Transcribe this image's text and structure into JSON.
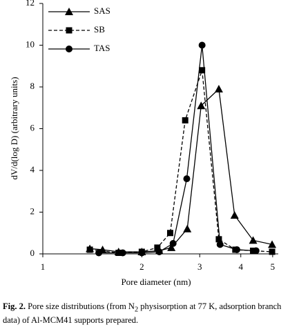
{
  "chart_data": {
    "type": "line",
    "x_label": "Pore diameter (nm)",
    "y_label": "dV/d(log D) (arbitrary units)",
    "xlim": [
      1,
      5.2
    ],
    "xticks": [
      1,
      2,
      3,
      4,
      5
    ],
    "x_log": true,
    "ylim": [
      0,
      12
    ],
    "yticks": [
      0,
      2,
      4,
      6,
      8,
      10,
      12
    ],
    "legend": "upper left",
    "series": [
      {
        "name": "SAS",
        "color": "#000000",
        "marker": "triangle",
        "dashed": false,
        "x": [
          1.39,
          1.52,
          1.7,
          2.0,
          2.26,
          2.46,
          2.75,
          3.03,
          3.43,
          3.83,
          4.36,
          4.98
        ],
        "values": [
          0.25,
          0.2,
          0.1,
          0.1,
          0.15,
          0.3,
          1.2,
          7.1,
          7.9,
          1.85,
          0.65,
          0.45
        ]
      },
      {
        "name": "SB",
        "color": "#000000",
        "marker": "square",
        "dashed": true,
        "x": [
          1.39,
          1.7,
          2.0,
          2.23,
          2.44,
          2.71,
          3.05,
          3.43,
          3.85,
          4.36,
          4.98
        ],
        "values": [
          0.2,
          0.05,
          0.1,
          0.3,
          1.0,
          6.4,
          8.8,
          0.7,
          0.2,
          0.15,
          0.1
        ]
      },
      {
        "name": "TAS",
        "color": "#000000",
        "marker": "circle",
        "dashed": false,
        "x": [
          1.48,
          1.75,
          2.0,
          2.26,
          2.49,
          2.74,
          3.05,
          3.46,
          3.89,
          4.45
        ],
        "values": [
          0.05,
          0.05,
          0.05,
          0.1,
          0.5,
          3.6,
          10.0,
          0.45,
          0.2,
          0.15
        ]
      }
    ]
  },
  "caption": {
    "label": "Fig. 2.",
    "text_before": " Pore size distributions (from N",
    "subscript": "2",
    "text_after": " physisorption at 77 K, adsorption branch data) of Al-MCM41 supports prepared."
  }
}
